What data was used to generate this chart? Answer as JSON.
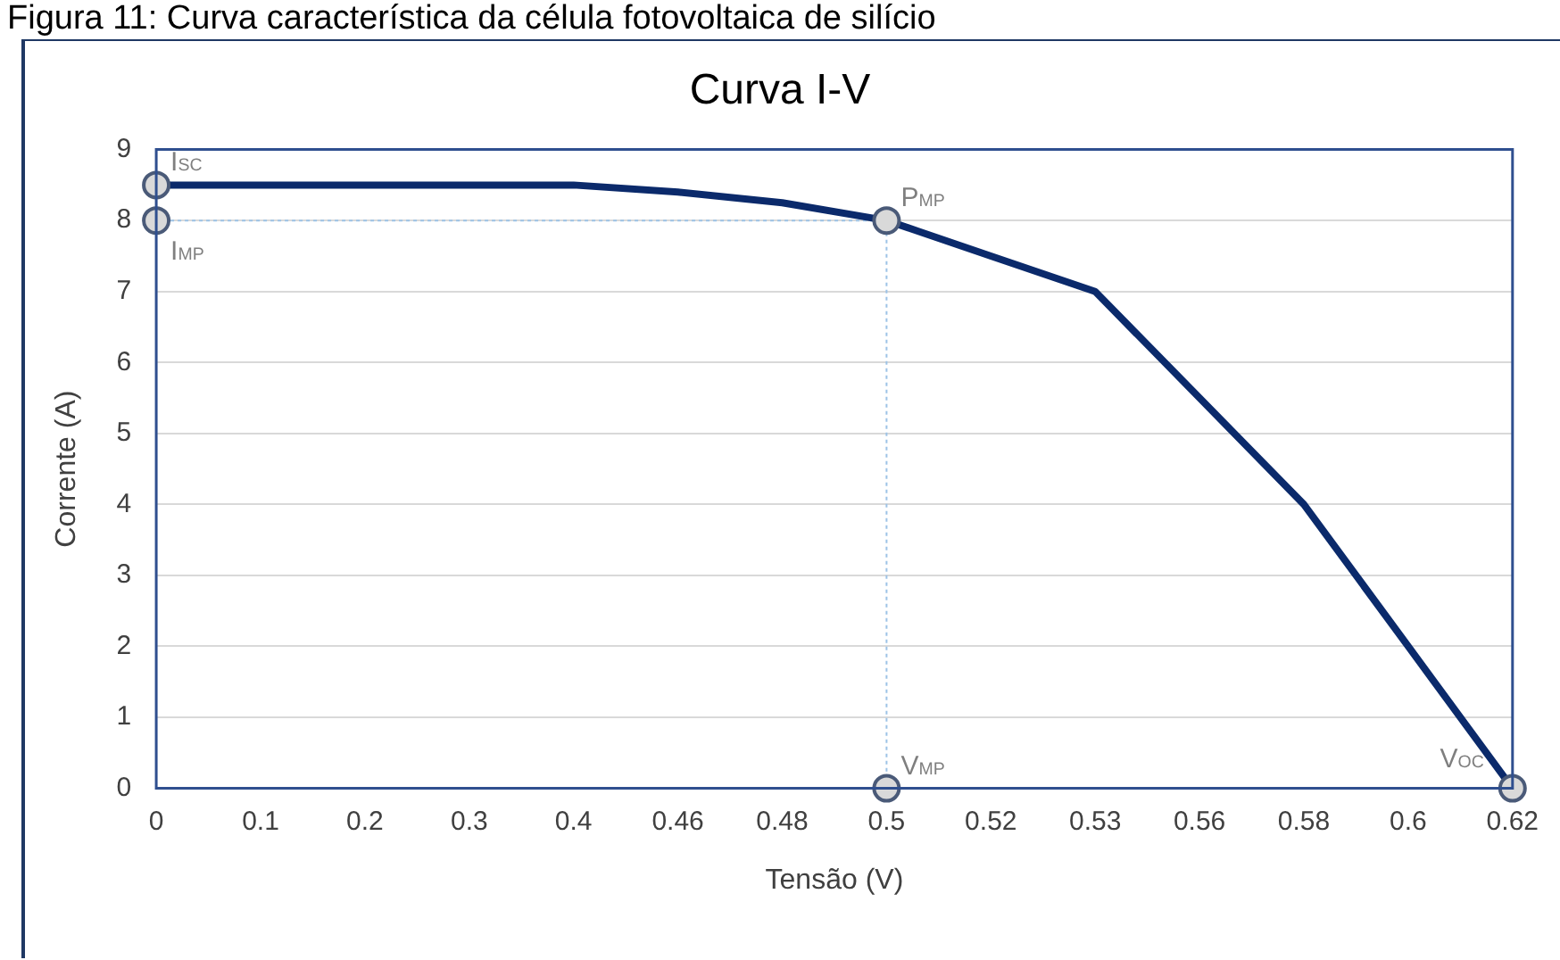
{
  "chart_data": {
    "type": "line",
    "title": "Curva I-V",
    "xlabel": "Tensão (V)",
    "ylabel": "Corrente (A)",
    "categories": [
      "0",
      "0.1",
      "0.2",
      "0.3",
      "0.4",
      "0.46",
      "0.48",
      "0.5",
      "0.52",
      "0.53",
      "0.56",
      "0.58",
      "0.6",
      "0.62"
    ],
    "series": [
      {
        "color": "#0b2a6b",
        "values": [
          8.5,
          8.5,
          8.5,
          8.5,
          8.5,
          8.4,
          8.25,
          8,
          7.5,
          7,
          5.5,
          4,
          2,
          0
        ],
        "marker": "none",
        "line_style": "solid"
      },
      {
        "type": "line",
        "color": "#9dc3e6",
        "x": [
          "0",
          "0.5",
          "0.5"
        ],
        "values": [
          8,
          8,
          0
        ],
        "marker": "none",
        "line_style": "dotted"
      },
      {
        "type": "scatter",
        "color": "#d9d9d9",
        "x": [
          "0",
          "0",
          "0.5",
          "0.5",
          "0.62"
        ],
        "values": [
          8.5,
          8,
          8,
          0,
          0
        ],
        "marker": "circle"
      }
    ],
    "ylim": [
      0,
      9
    ],
    "yticks": [
      0,
      1,
      2,
      3,
      4,
      5,
      6,
      7,
      8,
      9
    ],
    "grid": "y",
    "legend": false,
    "annotations": [
      {
        "text": "I$_{SC}$",
        "x": "0",
        "y": 8.5
      },
      {
        "text": "I$_{MP}$",
        "x": "0",
        "y": 8
      },
      {
        "text": "P$_{MP}$",
        "x": "0.5",
        "y": 8
      },
      {
        "text": "V$_{MP}$",
        "x": "0.5",
        "y": 0
      },
      {
        "text": "V$_{OC}$",
        "x": "0.62",
        "y": 0
      },
      "Figura 11: Curva característica da célula fotovoltaica de silício"
    ]
  }
}
